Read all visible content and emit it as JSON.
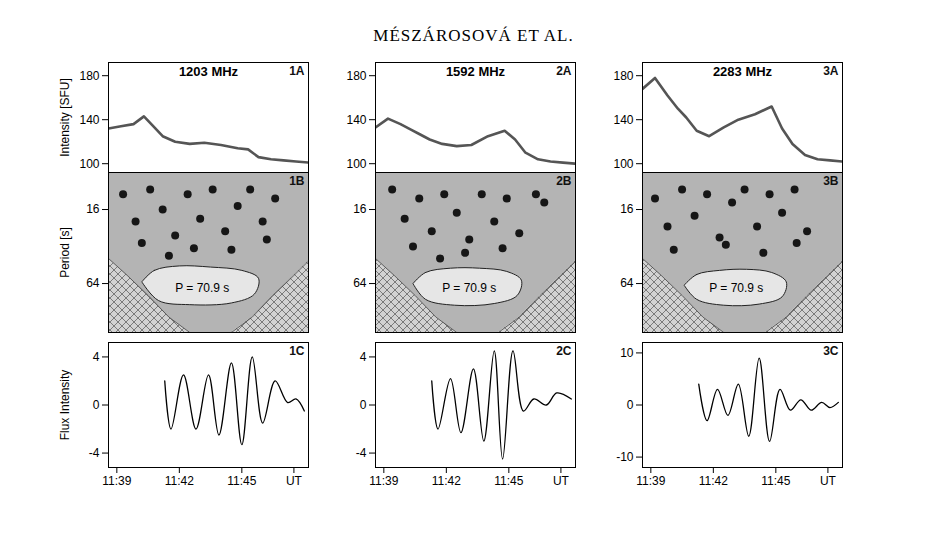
{
  "title": "MÉSZÁROSOVÁ ET AL.",
  "chart_data": [
    {
      "panel_label": "1A",
      "type": "line",
      "title": "1203 MHz",
      "ylabel": "Intensity [SFU]",
      "color": "#555555",
      "line_style": "solid",
      "x": [
        698.6,
        699.2,
        699.8,
        700.3,
        700.7,
        701.2,
        701.8,
        702.5,
        703.2,
        704.0,
        704.8,
        705.3,
        705.8,
        706.4,
        707.0,
        707.6,
        708.2
      ],
      "values": [
        132,
        134,
        136,
        143,
        135,
        125,
        120,
        118,
        119,
        117,
        114,
        113,
        106,
        104,
        103,
        102,
        101
      ],
      "xlim": [
        698.6,
        708.2
      ],
      "ylim": [
        92,
        192
      ],
      "yticks": [
        100,
        140,
        180
      ],
      "tick_labels": "y"
    },
    {
      "panel_label": "2A",
      "type": "line",
      "title": "1592 MHz",
      "color": "#555555",
      "line_style": "solid",
      "x": [
        698.6,
        699.2,
        699.8,
        700.3,
        700.7,
        701.2,
        701.8,
        702.5,
        703.2,
        704.0,
        704.8,
        705.3,
        705.8,
        706.4,
        707.0,
        707.6,
        708.2
      ],
      "values": [
        133,
        141,
        136,
        131,
        127,
        122,
        118,
        116,
        117,
        125,
        130,
        122,
        110,
        104,
        102,
        101,
        100
      ],
      "xlim": [
        698.6,
        708.2
      ],
      "ylim": [
        92,
        192
      ],
      "yticks": [
        100,
        140,
        180
      ],
      "tick_labels": "y"
    },
    {
      "panel_label": "3A",
      "type": "line",
      "title": "2283 MHz",
      "color": "#555555",
      "line_style": "solid",
      "x": [
        698.6,
        699.2,
        699.8,
        700.3,
        700.7,
        701.2,
        701.8,
        702.5,
        703.2,
        704.0,
        704.8,
        705.3,
        705.8,
        706.4,
        707.0,
        707.6,
        708.2
      ],
      "values": [
        168,
        178,
        162,
        150,
        142,
        130,
        125,
        133,
        140,
        145,
        152,
        132,
        118,
        108,
        104,
        103,
        102
      ],
      "xlim": [
        698.6,
        708.2
      ],
      "ylim": [
        92,
        192
      ],
      "yticks": [
        100,
        140,
        180
      ],
      "tick_labels": "y"
    },
    {
      "panel_label": "1B",
      "type": "contour",
      "ylabel": "Period [s]",
      "log": "y",
      "tick_labels": "y",
      "xlim": [
        698.6,
        708.2
      ],
      "ylim": [
        8,
        160
      ],
      "yticks": [
        16,
        64
      ],
      "spots": {
        "x": [
          699.3,
          699.9,
          700.6,
          701.2,
          701.8,
          702.4,
          703.0,
          703.6,
          704.2,
          704.8,
          705.4,
          706.0,
          706.6,
          700.2,
          702.7,
          704.5,
          706.2,
          701.5
        ],
        "period": [
          12,
          20,
          11,
          16,
          26,
          12,
          19,
          11,
          24,
          15,
          11,
          20,
          13,
          30,
          33,
          34,
          28,
          38
        ]
      },
      "contour": {
        "x": [
          700.2,
          700.8,
          702.0,
          703.5,
          705.0,
          705.8,
          705.6,
          704.5,
          702.5,
          701.0,
          700.2
        ],
        "period": [
          62,
          50,
          46,
          47,
          50,
          58,
          78,
          92,
          95,
          88,
          62
        ]
      },
      "cone_of_influence": {
        "x": [
          698.6,
          699.5,
          700.5,
          701.5,
          702.5,
          704.5,
          705.5,
          706.5,
          707.5,
          708.2
        ],
        "period": [
          40,
          55,
          80,
          120,
          160,
          160,
          120,
          80,
          55,
          42
        ]
      },
      "annotation": {
        "text": "P = 70.9 s",
        "x": 703.1,
        "period": 70
      }
    },
    {
      "panel_label": "2B",
      "type": "contour",
      "log": "y",
      "tick_labels": "y",
      "xlim": [
        698.6,
        708.2
      ],
      "ylim": [
        8,
        160
      ],
      "yticks": [
        16,
        64
      ],
      "spots": {
        "x": [
          699.4,
          700.0,
          700.7,
          701.3,
          701.9,
          702.5,
          703.1,
          703.7,
          704.3,
          704.9,
          705.5,
          706.3,
          706.7,
          700.4,
          702.9,
          704.7,
          701.7
        ],
        "period": [
          11,
          19,
          13,
          24,
          12,
          17,
          28,
          12,
          20,
          13,
          25,
          12,
          14,
          32,
          36,
          33,
          40
        ]
      },
      "contour": {
        "x": [
          700.4,
          701.0,
          702.2,
          703.6,
          704.9,
          705.6,
          705.4,
          704.3,
          702.4,
          701.0,
          700.4
        ],
        "period": [
          64,
          52,
          48,
          48,
          51,
          60,
          80,
          93,
          96,
          86,
          64
        ]
      },
      "cone_of_influence": {
        "x": [
          698.6,
          699.5,
          700.5,
          701.5,
          702.5,
          704.5,
          705.5,
          706.5,
          707.5,
          708.2
        ],
        "period": [
          40,
          55,
          80,
          120,
          160,
          160,
          120,
          80,
          55,
          42
        ]
      },
      "annotation": {
        "text": "P = 70.9 s",
        "x": 703.1,
        "period": 70
      }
    },
    {
      "panel_label": "3B",
      "type": "contour",
      "log": "y",
      "tick_labels": "y",
      "xlim": [
        698.6,
        708.2
      ],
      "ylim": [
        8,
        160
      ],
      "yticks": [
        16,
        64
      ],
      "spots": {
        "x": [
          699.2,
          699.8,
          700.5,
          701.1,
          701.7,
          702.3,
          702.9,
          703.5,
          704.1,
          704.7,
          705.3,
          705.9,
          706.5,
          700.1,
          702.6,
          704.4,
          706.0
        ],
        "period": [
          13,
          22,
          11,
          18,
          12,
          27,
          14,
          11,
          22,
          12,
          17,
          11,
          24,
          34,
          31,
          36,
          30
        ]
      },
      "contour": {
        "x": [
          700.6,
          701.2,
          702.3,
          703.6,
          704.8,
          705.5,
          705.3,
          704.2,
          702.5,
          701.2,
          700.6
        ],
        "period": [
          66,
          54,
          50,
          49,
          52,
          62,
          82,
          94,
          96,
          86,
          66
        ]
      },
      "cone_of_influence": {
        "x": [
          698.6,
          699.5,
          700.5,
          701.5,
          702.5,
          704.5,
          705.5,
          706.5,
          707.5,
          708.2
        ],
        "period": [
          40,
          55,
          80,
          120,
          160,
          160,
          120,
          80,
          55,
          42
        ]
      },
      "annotation": {
        "text": "P = 70.9 s",
        "x": 703.1,
        "period": 70
      }
    },
    {
      "panel_label": "1C",
      "type": "line",
      "ylabel": "Flux Intensity",
      "color": "#000000",
      "line_style": "smooth",
      "tick_labels": true,
      "x": [
        701.3,
        701.6,
        702.2,
        702.8,
        703.4,
        703.9,
        704.5,
        705.0,
        705.5,
        706.0,
        706.6,
        707.2,
        707.6,
        708.0
      ],
      "values": [
        2,
        -2,
        2.5,
        -2,
        2.5,
        -2.5,
        3.5,
        -3.3,
        4,
        -1.5,
        2,
        0.2,
        0.5,
        -0.5
      ],
      "xlim": [
        698.6,
        708.2
      ],
      "xticks": [
        {
          "value": 699,
          "label": "11:39"
        },
        {
          "value": 702,
          "label": "11:42"
        },
        {
          "value": 705,
          "label": "11:45"
        },
        {
          "value": 707.5,
          "label": "UT"
        }
      ],
      "ylim": [
        -5.2,
        5.2
      ],
      "yticks": [
        -4,
        0,
        4
      ]
    },
    {
      "panel_label": "2C",
      "type": "line",
      "color": "#000000",
      "line_style": "smooth",
      "tick_labels": true,
      "x": [
        701.3,
        701.6,
        702.2,
        702.7,
        703.3,
        703.8,
        704.3,
        704.7,
        705.2,
        705.7,
        706.2,
        706.8,
        707.3,
        708.0
      ],
      "values": [
        2,
        -2,
        2.2,
        -2.3,
        3,
        -3,
        4.5,
        -4.5,
        4.5,
        -0.5,
        0.5,
        0,
        1,
        0.5
      ],
      "xlim": [
        698.6,
        708.2
      ],
      "xticks": [
        {
          "value": 699,
          "label": "11:39"
        },
        {
          "value": 702,
          "label": "11:42"
        },
        {
          "value": 705,
          "label": "11:45"
        },
        {
          "value": 707.5,
          "label": "UT"
        }
      ],
      "ylim": [
        -5.2,
        5.2
      ],
      "yticks": [
        -4,
        0,
        4
      ]
    },
    {
      "panel_label": "3C",
      "type": "line",
      "color": "#000000",
      "line_style": "smooth",
      "tick_labels": true,
      "x": [
        701.3,
        701.7,
        702.2,
        702.7,
        703.2,
        703.7,
        704.2,
        704.7,
        705.2,
        705.7,
        706.2,
        706.7,
        707.2,
        707.6,
        708.0
      ],
      "values": [
        4,
        -3,
        3,
        -2,
        4,
        -6,
        9,
        -7,
        3,
        -1,
        1,
        -1,
        0.5,
        -0.5,
        0.5
      ],
      "xlim": [
        698.6,
        708.2
      ],
      "xticks": [
        {
          "value": 699,
          "label": "11:39"
        },
        {
          "value": 702,
          "label": "11:42"
        },
        {
          "value": 705,
          "label": "11:45"
        },
        {
          "value": 707.5,
          "label": "UT"
        }
      ],
      "ylim": [
        -12,
        12
      ],
      "yticks": [
        -10,
        0,
        10
      ]
    }
  ]
}
